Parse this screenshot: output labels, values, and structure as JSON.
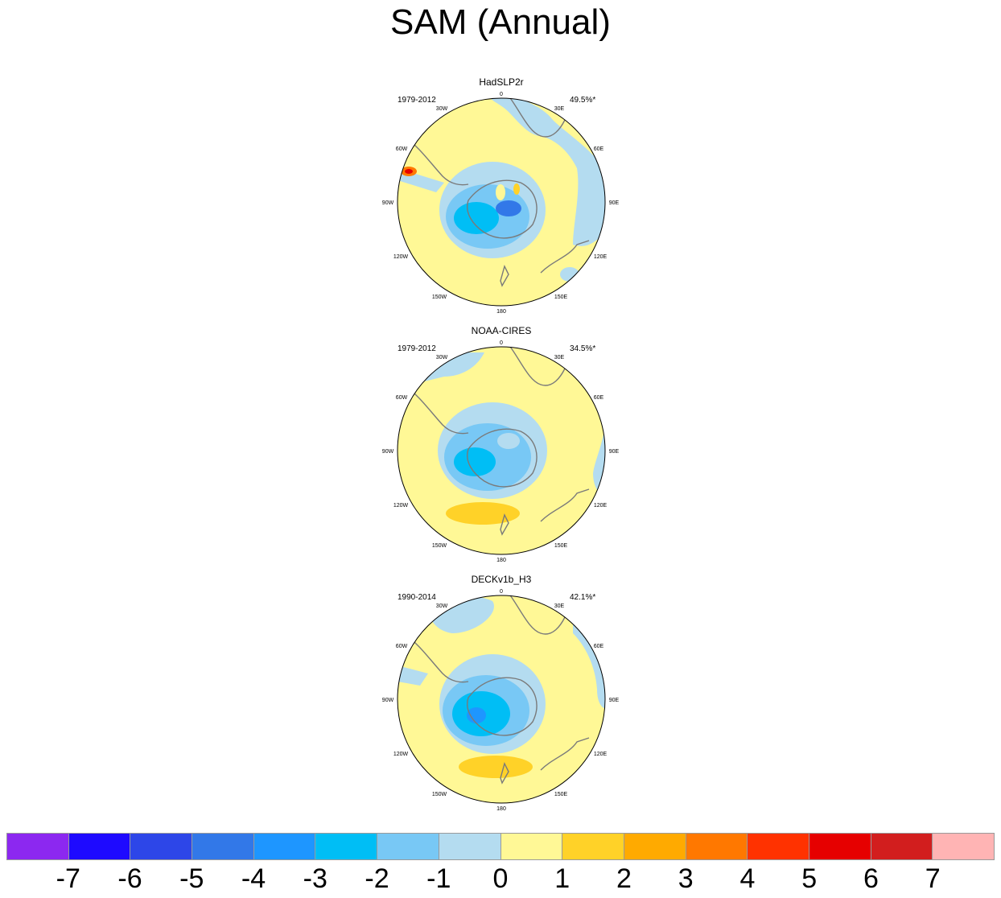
{
  "title": "SAM (Annual)",
  "panels": [
    {
      "name": "HadSLP2r",
      "period": "1979-2012",
      "variance": "49.5%*"
    },
    {
      "name": "NOAA-CIRES",
      "period": "1979-2012",
      "variance": "34.5%*"
    },
    {
      "name": "DECKv1b_H3",
      "period": "1990-2014",
      "variance": "42.1%*"
    }
  ],
  "longitude_labels": [
    "0",
    "30E",
    "60E",
    "90E",
    "120E",
    "150E",
    "180",
    "150W",
    "120W",
    "90W",
    "60W",
    "30W"
  ],
  "colorbar": {
    "colors": [
      "#8c28f0",
      "#1e0aff",
      "#2d46e8",
      "#3278e8",
      "#1e96ff",
      "#00bef5",
      "#78c8f5",
      "#b4dcf0",
      "#fff896",
      "#ffd228",
      "#ffaa00",
      "#ff7800",
      "#ff3200",
      "#e60000",
      "#d21e1e",
      "#ffb4b4"
    ],
    "labels": [
      "-7",
      "-6",
      "-5",
      "-4",
      "-3",
      "-2",
      "-1",
      "0",
      "1",
      "2",
      "3",
      "4",
      "5",
      "6",
      "7"
    ]
  }
}
